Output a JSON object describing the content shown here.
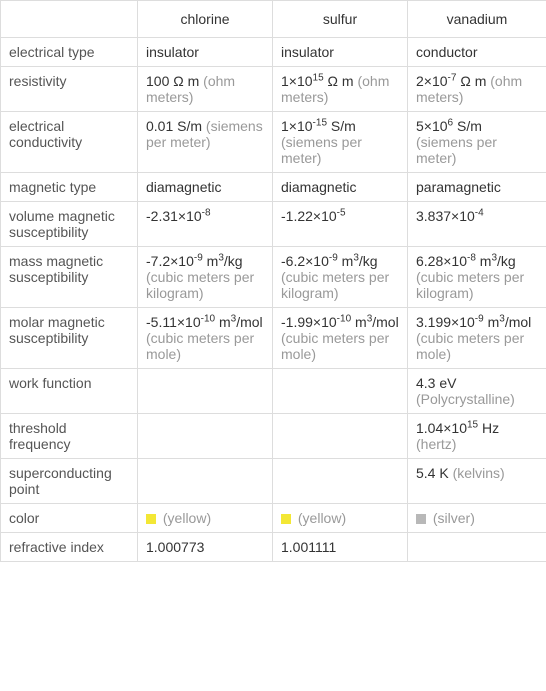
{
  "headers": {
    "col1": "",
    "col2": "chlorine",
    "col3": "sulfur",
    "col4": "vanadium"
  },
  "rows": {
    "electrical_type": {
      "label": "electrical type",
      "chlorine": "insulator",
      "sulfur": "insulator",
      "vanadium": "conductor"
    },
    "resistivity": {
      "label": "resistivity",
      "chlorine_val": "100 Ω m",
      "chlorine_unit": " (ohm meters)",
      "sulfur_pre": "1×10",
      "sulfur_exp": "15",
      "sulfur_post": " Ω m",
      "sulfur_unit": " (ohm meters)",
      "vanadium_pre": "2×10",
      "vanadium_exp": "-7",
      "vanadium_post": " Ω m",
      "vanadium_unit": " (ohm meters)"
    },
    "electrical_conductivity": {
      "label": "electrical conductivity",
      "chlorine_val": "0.01 S/m",
      "chlorine_unit": " (siemens per meter)",
      "sulfur_pre": "1×10",
      "sulfur_exp": "-15",
      "sulfur_post": " S/m",
      "sulfur_unit": " (siemens per meter)",
      "vanadium_pre": "5×10",
      "vanadium_exp": "6",
      "vanadium_post": " S/m",
      "vanadium_unit": " (siemens per meter)"
    },
    "magnetic_type": {
      "label": "magnetic type",
      "chlorine": "diamagnetic",
      "sulfur": "diamagnetic",
      "vanadium": "paramagnetic"
    },
    "volume_magnetic_susceptibility": {
      "label": "volume magnetic susceptibility",
      "chlorine_pre": "-2.31×10",
      "chlorine_exp": "-8",
      "sulfur_pre": "-1.22×10",
      "sulfur_exp": "-5",
      "vanadium_pre": "3.837×10",
      "vanadium_exp": "-4"
    },
    "mass_magnetic_susceptibility": {
      "label": "mass magnetic susceptibility",
      "chlorine_pre": "-7.2×10",
      "chlorine_exp": "-9",
      "chlorine_post": " m",
      "chlorine_exp2": "3",
      "chlorine_post2": "/kg",
      "chlorine_unit": " (cubic meters per kilogram)",
      "sulfur_pre": "-6.2×10",
      "sulfur_exp": "-9",
      "sulfur_post": " m",
      "sulfur_exp2": "3",
      "sulfur_post2": "/kg",
      "sulfur_unit": " (cubic meters per kilogram)",
      "vanadium_pre": "6.28×10",
      "vanadium_exp": "-8",
      "vanadium_post": " m",
      "vanadium_exp2": "3",
      "vanadium_post2": "/kg",
      "vanadium_unit": " (cubic meters per kilogram)"
    },
    "molar_magnetic_susceptibility": {
      "label": "molar magnetic susceptibility",
      "chlorine_pre": "-5.11×10",
      "chlorine_exp": "-10",
      "chlorine_post": " m",
      "chlorine_exp2": "3",
      "chlorine_post2": "/mol",
      "chlorine_unit": " (cubic meters per mole)",
      "sulfur_pre": "-1.99×10",
      "sulfur_exp": "-10",
      "sulfur_post": " m",
      "sulfur_exp2": "3",
      "sulfur_post2": "/mol",
      "sulfur_unit": " (cubic meters per mole)",
      "vanadium_pre": "3.199×10",
      "vanadium_exp": "-9",
      "vanadium_post": " m",
      "vanadium_exp2": "3",
      "vanadium_post2": "/mol",
      "vanadium_unit": " (cubic meters per mole)"
    },
    "work_function": {
      "label": "work function",
      "chlorine": "",
      "sulfur": "",
      "vanadium_val": "4.3 eV",
      "vanadium_unit": " (Polycrystalline)"
    },
    "threshold_frequency": {
      "label": "threshold frequency",
      "chlorine": "",
      "sulfur": "",
      "vanadium_pre": "1.04×10",
      "vanadium_exp": "15",
      "vanadium_post": " Hz",
      "vanadium_unit": " (hertz)"
    },
    "superconducting_point": {
      "label": "superconducting point",
      "chlorine": "",
      "sulfur": "",
      "vanadium_val": "5.4 K",
      "vanadium_unit": " (kelvins)"
    },
    "color": {
      "label": "color",
      "chlorine_swatch": "#f3e735",
      "chlorine_text": " (yellow)",
      "sulfur_swatch": "#f3e735",
      "sulfur_text": " (yellow)",
      "vanadium_swatch": "#b8b8b8",
      "vanadium_text": " (silver)"
    },
    "refractive_index": {
      "label": "refractive index",
      "chlorine": "1.000773",
      "sulfur": "1.001111",
      "vanadium": ""
    }
  }
}
